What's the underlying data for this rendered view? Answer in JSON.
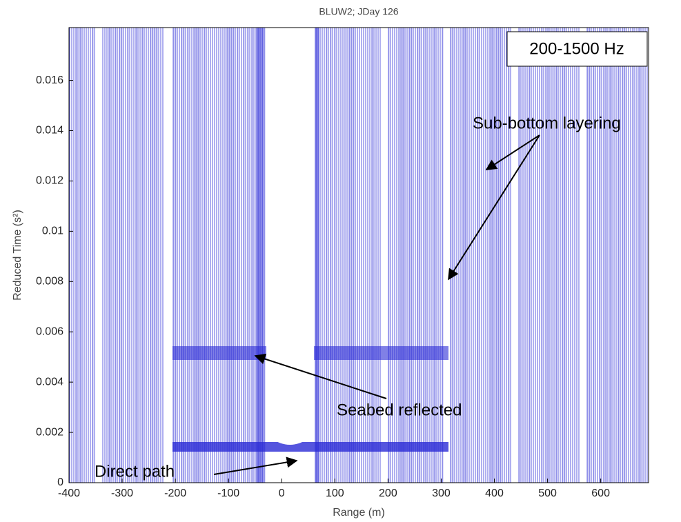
{
  "chart_data": {
    "type": "image",
    "title": "BLUW2; JDay 126",
    "x_label": "Range (m)",
    "y_label": "Reduced Time (s²)",
    "xlim": [
      -400,
      690
    ],
    "xticks": [
      -400,
      -300,
      -200,
      -100,
      0,
      100,
      200,
      300,
      400,
      500,
      600
    ],
    "ylim": [
      0,
      0.0181
    ],
    "yticks": [
      0,
      0.002,
      0.004,
      0.006,
      0.008,
      0.01,
      0.012,
      0.014,
      0.016
    ],
    "color": "#2b2bd6",
    "annotations": {
      "band": "200-1500 Hz",
      "layering": "Sub-bottom layering",
      "seabed": "Seabed reflected",
      "direct": "Direct path"
    }
  }
}
